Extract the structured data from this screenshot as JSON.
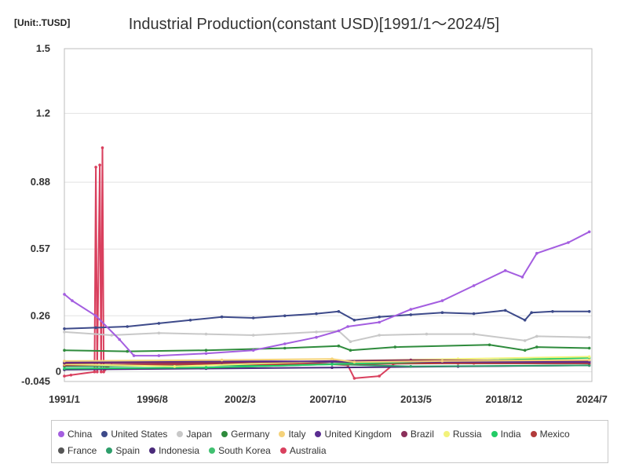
{
  "header": {
    "unit": "[Unit:.TUSD]",
    "title": "Industrial Production(constant USD)[1991/1～2024/5]"
  },
  "chart_data": {
    "type": "line",
    "title": "Industrial Production(constant USD)[1991/1～2024/5]",
    "unit": "[Unit:.TUSD]",
    "xlabel": "",
    "ylabel": "",
    "x_tick_labels": [
      "1991/1",
      "1996/8",
      "2002/3",
      "2007/10",
      "2013/5",
      "2018/12",
      "2024/7"
    ],
    "y_tick_labels": [
      "1.5",
      "1.2",
      "0.88",
      "0.57",
      "0.26",
      "0",
      "-0.045"
    ],
    "y_tick_values": [
      1.5,
      1.2,
      0.88,
      0.57,
      0.26,
      0,
      -0.045
    ],
    "ylim": [
      -0.045,
      1.5
    ],
    "x_range": [
      "1991-01",
      "2024-07"
    ],
    "grid": "horizontal",
    "legend_position": "bottom",
    "series": [
      {
        "name": "China",
        "color": "#a45ee0",
        "x": [
          "1991-01",
          "1991-07",
          "1993-01",
          "1994-07",
          "1995-06",
          "1997-01",
          "2000-01",
          "2003-01",
          "2005-01",
          "2007-01",
          "2008-06",
          "2009-01",
          "2011-01",
          "2013-01",
          "2015-01",
          "2017-01",
          "2019-01",
          "2020-02",
          "2021-01",
          "2023-01",
          "2024-05"
        ],
        "values": [
          0.36,
          0.33,
          0.26,
          0.15,
          0.075,
          0.075,
          0.085,
          0.1,
          0.13,
          0.16,
          0.19,
          0.21,
          0.23,
          0.29,
          0.33,
          0.4,
          0.47,
          0.44,
          0.55,
          0.6,
          0.65
        ]
      },
      {
        "name": "United States",
        "color": "#3d4a8a",
        "x": [
          "1991-01",
          "1993-01",
          "1995-01",
          "1997-01",
          "1999-01",
          "2001-01",
          "2003-01",
          "2005-01",
          "2007-01",
          "2008-06",
          "2009-06",
          "2011-01",
          "2013-01",
          "2015-01",
          "2017-01",
          "2019-01",
          "2020-04",
          "2020-09",
          "2022-01",
          "2024-05"
        ],
        "values": [
          0.2,
          0.205,
          0.21,
          0.225,
          0.24,
          0.255,
          0.25,
          0.26,
          0.27,
          0.28,
          0.24,
          0.255,
          0.265,
          0.275,
          0.27,
          0.285,
          0.24,
          0.275,
          0.28,
          0.28
        ]
      },
      {
        "name": "Japan",
        "color": "#c8c8c8",
        "x": [
          "1991-01",
          "1994-01",
          "1997-01",
          "2000-01",
          "2003-01",
          "2007-01",
          "2008-06",
          "2009-03",
          "2011-01",
          "2014-01",
          "2017-01",
          "2020-04",
          "2021-01",
          "2024-05"
        ],
        "values": [
          0.185,
          0.17,
          0.18,
          0.175,
          0.17,
          0.185,
          0.19,
          0.14,
          0.17,
          0.175,
          0.175,
          0.145,
          0.165,
          0.16
        ]
      },
      {
        "name": "Germany",
        "color": "#2e8b3c",
        "x": [
          "1991-01",
          "1995-01",
          "2000-01",
          "2005-01",
          "2008-06",
          "2009-03",
          "2012-01",
          "2018-01",
          "2020-04",
          "2021-01",
          "2024-05"
        ],
        "values": [
          0.1,
          0.095,
          0.1,
          0.11,
          0.12,
          0.1,
          0.115,
          0.125,
          0.1,
          0.115,
          0.11
        ]
      },
      {
        "name": "Italy",
        "color": "#f5d27a",
        "x": [
          "1991-01",
          "2001-01",
          "2008-01",
          "2009-06",
          "2015-01",
          "2024-05"
        ],
        "values": [
          0.05,
          0.055,
          0.06,
          0.045,
          0.05,
          0.055
        ]
      },
      {
        "name": "United Kingdom",
        "color": "#5a2d91",
        "x": [
          "1991-01",
          "2000-01",
          "2008-01",
          "2015-01",
          "2024-05"
        ],
        "values": [
          0.045,
          0.05,
          0.048,
          0.046,
          0.045
        ]
      },
      {
        "name": "Brazil",
        "color": "#8b2f5a",
        "x": [
          "1991-01",
          "2001-01",
          "2008-01",
          "2013-01",
          "2024-05"
        ],
        "values": [
          0.04,
          0.042,
          0.05,
          0.055,
          0.05
        ]
      },
      {
        "name": "Russia",
        "color": "#f2f27a",
        "x": [
          "1991-01",
          "1998-01",
          "2008-01",
          "2016-01",
          "2024-05"
        ],
        "values": [
          0.035,
          0.025,
          0.05,
          0.06,
          0.07
        ]
      },
      {
        "name": "India",
        "color": "#22cc66",
        "x": [
          "1991-01",
          "2000-01",
          "2008-01",
          "2016-01",
          "2024-05"
        ],
        "values": [
          0.015,
          0.02,
          0.035,
          0.05,
          0.065
        ]
      },
      {
        "name": "Mexico",
        "color": "#b23b3b",
        "x": [
          "1991-01",
          "2000-01",
          "2008-01",
          "2016-01",
          "2024-05"
        ],
        "values": [
          0.03,
          0.035,
          0.035,
          0.04,
          0.04
        ]
      },
      {
        "name": "France",
        "color": "#555555",
        "x": [
          "1991-01",
          "2000-01",
          "2008-01",
          "2016-01",
          "2024-05"
        ],
        "values": [
          0.04,
          0.045,
          0.045,
          0.04,
          0.04
        ]
      },
      {
        "name": "Spain",
        "color": "#2e9e6b",
        "x": [
          "1991-01",
          "2000-01",
          "2008-01",
          "2013-01",
          "2024-05"
        ],
        "values": [
          0.025,
          0.03,
          0.035,
          0.025,
          0.03
        ]
      },
      {
        "name": "Indonesia",
        "color": "#4a2a7a",
        "x": [
          "1991-01",
          "2000-01",
          "2008-01",
          "2016-01",
          "2024-05"
        ],
        "values": [
          0.01,
          0.015,
          0.02,
          0.025,
          0.03
        ]
      },
      {
        "name": "South Korea",
        "color": "#40c070",
        "x": [
          "1991-01",
          "2000-01",
          "2008-01",
          "2016-01",
          "2024-05"
        ],
        "values": [
          0.01,
          0.02,
          0.035,
          0.05,
          0.055
        ]
      },
      {
        "name": "Australia",
        "color": "#d9405e",
        "x": [
          "1991-01",
          "1991-06",
          "1992-12",
          "1993-01",
          "1993-02",
          "1993-04",
          "1993-05",
          "1993-06",
          "1993-07",
          "1993-08",
          "1993-09",
          "1994-01",
          "1997-01",
          "2000-01",
          "2004-01",
          "2007-01",
          "2009-01",
          "2009-06",
          "2011-01",
          "2012-01",
          "2013-01",
          "2017-01",
          "2024-05"
        ],
        "values": [
          -0.02,
          -0.015,
          0.0,
          0.95,
          0.0,
          0.96,
          0.0,
          1.04,
          0.0,
          0.01,
          0.02,
          0.03,
          0.035,
          0.035,
          0.04,
          0.04,
          0.03,
          -0.03,
          -0.02,
          0.04,
          0.045,
          0.04,
          0.04
        ]
      }
    ]
  }
}
